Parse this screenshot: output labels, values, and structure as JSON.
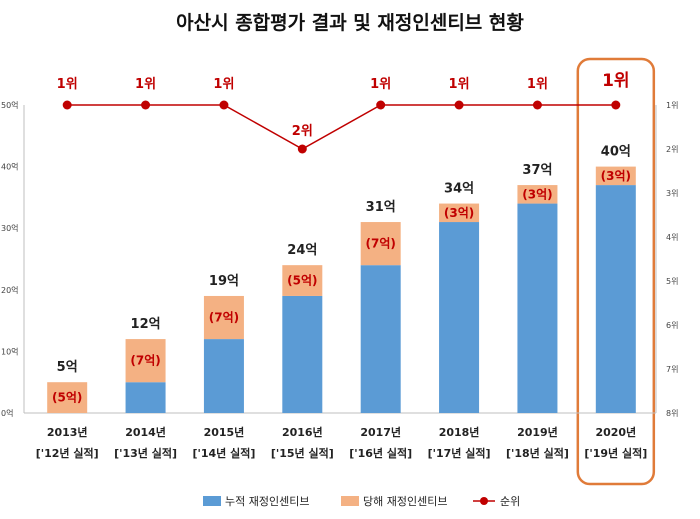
{
  "chart_data": {
    "type": "bar",
    "title": "아산시 종합평가 결과 및 재정인센티브 현황",
    "categories": [
      [
        "2013년",
        "['12년 실적]"
      ],
      [
        "2014년",
        "['13년 실적]"
      ],
      [
        "2015년",
        "['14년 실적]"
      ],
      [
        "2016년",
        "['15년 실적]"
      ],
      [
        "2017년",
        "['16년 실적]"
      ],
      [
        "2018년",
        "['17년 실적]"
      ],
      [
        "2019년",
        "['18년 실적]"
      ],
      [
        "2020년",
        "['19년 실적]"
      ]
    ],
    "series": [
      {
        "name": "누적 재정인센티브",
        "values": [
          0,
          5,
          12,
          19,
          24,
          31,
          34,
          37
        ],
        "color": "#5b9bd5"
      },
      {
        "name": "당해 재정인센티브",
        "values": [
          5,
          7,
          7,
          5,
          7,
          3,
          3,
          3
        ],
        "color": "#f4b183"
      },
      {
        "name": "순위",
        "values": [
          1,
          1,
          1,
          2,
          1,
          1,
          1,
          1
        ],
        "color": "#c00000"
      }
    ],
    "total_labels": [
      "5억",
      "12억",
      "19억",
      "24억",
      "31억",
      "34억",
      "37억",
      "40억"
    ],
    "increment_labels": [
      "(5억)",
      "(7억)",
      "(7억)",
      "(5억)",
      "(7억)",
      "(3억)",
      "(3억)",
      "(3억)"
    ],
    "rank_labels": [
      "1위",
      "1위",
      "1위",
      "2위",
      "1위",
      "1위",
      "1위",
      "1위"
    ],
    "ylim": [
      0,
      50
    ],
    "y_ticks": [
      "0억",
      "10억",
      "20억",
      "30억",
      "40억",
      "50억"
    ],
    "y2lim": [
      1,
      8
    ],
    "y2_ticks": [
      "1위",
      "2위",
      "3위",
      "4위",
      "5위",
      "6위",
      "7위",
      "8위"
    ],
    "highlight_index": 7,
    "highlight_color": "#e07b39",
    "grid": false,
    "legend_position": "bottom"
  }
}
